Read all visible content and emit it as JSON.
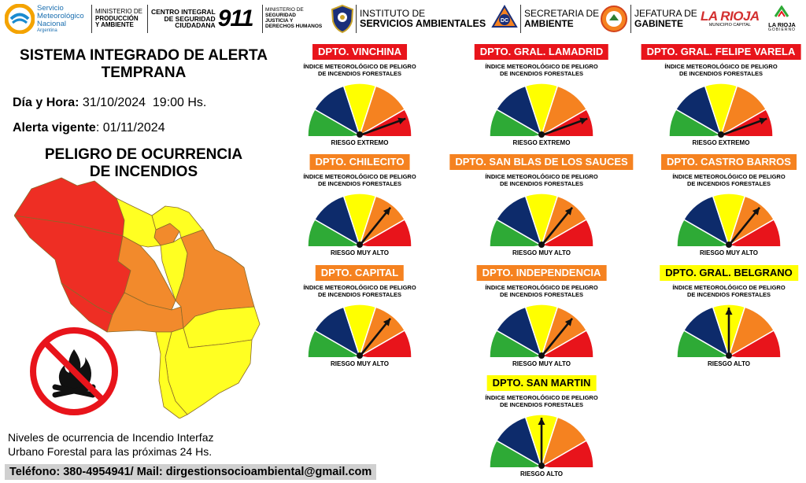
{
  "header": {
    "smn": [
      "Servicio",
      "Meteorológico",
      "Nacional",
      "Argentina"
    ],
    "ministerio_produccion": [
      "MINISTERIO DE",
      "PRODUCCIÓN",
      "Y AMBIENTE"
    ],
    "centro": [
      "CENTRO INTEGRAL",
      "DE SEGURIDAD",
      "CIUDADANA"
    ],
    "centro_number": "911",
    "ministerio_seguridad": [
      "MINISTERIO DE",
      "SEGURIDAD",
      "JUSTICIA Y",
      "DERECHOS HUMANOS"
    ],
    "instituto": [
      "INSTITUTO DE",
      "SERVICIOS AMBIENTALES"
    ],
    "defensa_civil_badge": "DC",
    "secretaria": [
      "SECRETARIA DE",
      "AMBIENTE"
    ],
    "jefatura": [
      "JEFATURA DE",
      "GABINETE"
    ],
    "municipio": [
      "LA RIOJA",
      "MUNICIPIO CAPITAL"
    ],
    "gobierno": [
      "LA RIOJA",
      "GOBIERNO"
    ]
  },
  "report": {
    "title_line1": "SISTEMA INTEGRADO DE ALERTA",
    "title_line2": "TEMPRANA",
    "datetime_label": "Día y Hora:",
    "datetime_value": "31/10/2024  19:00 Hs.",
    "alert_label": "Alerta vigente",
    "alert_value": ": 01/11/2024",
    "subtitle_line1": "PELIGRO DE OCURRENCIA",
    "subtitle_line2": "DE INCENDIOS",
    "note_line1": "Niveles de ocurrencia de Incendio Interfaz",
    "note_line2": "Urbano Forestal para las próximas 24 Hs.",
    "contact": "Teléfono:  380-4954941/ Mail: dirgestionsocioambiental@gmail.com"
  },
  "gauge_colors": {
    "bajo": "#2eaa36",
    "moderado": "#0d2b6b",
    "alto": "#ffff00",
    "muy_alto": "#f58220",
    "extremo": "#e8141b"
  },
  "gauge_caption_line1": "ÍNDICE METEOROLÓGICO DE PELIGRO",
  "gauge_caption_line2": "DE INCENDIOS FORESTALES",
  "departments": [
    {
      "name": "DPTO. VINCHINA",
      "risk": "RIESGO EXTREMO",
      "level": 5,
      "badge": "red"
    },
    {
      "name": "DPTO. GRAL. LAMADRID",
      "risk": "RIESGO EXTREMO",
      "level": 5,
      "badge": "red"
    },
    {
      "name": "DPTO. GRAL. FELIPE VARELA",
      "risk": "RIESGO EXTREMO",
      "level": 5,
      "badge": "red"
    },
    {
      "name": "DPTO. CHILECITO",
      "risk": "RIESGO MUY ALTO",
      "level": 4,
      "badge": "orange"
    },
    {
      "name": "DPTO. SAN BLAS DE LOS SAUCES",
      "risk": "RIESGO MUY ALTO",
      "level": 4,
      "badge": "orange"
    },
    {
      "name": "DPTO. CASTRO BARROS",
      "risk": "RIESGO MUY ALTO",
      "level": 4,
      "badge": "orange"
    },
    {
      "name": "DPTO. CAPITAL",
      "risk": "RIESGO MUY ALTO",
      "level": 4,
      "badge": "orange"
    },
    {
      "name": "DPTO. INDEPENDENCIA",
      "risk": "RIESGO MUY ALTO",
      "level": 4,
      "badge": "orange"
    },
    {
      "name": "DPTO. GRAL. BELGRANO",
      "risk": "RIESGO ALTO",
      "level": 3,
      "badge": "yellow"
    },
    {
      "name": "DPTO. SAN MARTIN",
      "risk": "RIESGO ALTO",
      "level": 3,
      "badge": "yellow"
    }
  ]
}
